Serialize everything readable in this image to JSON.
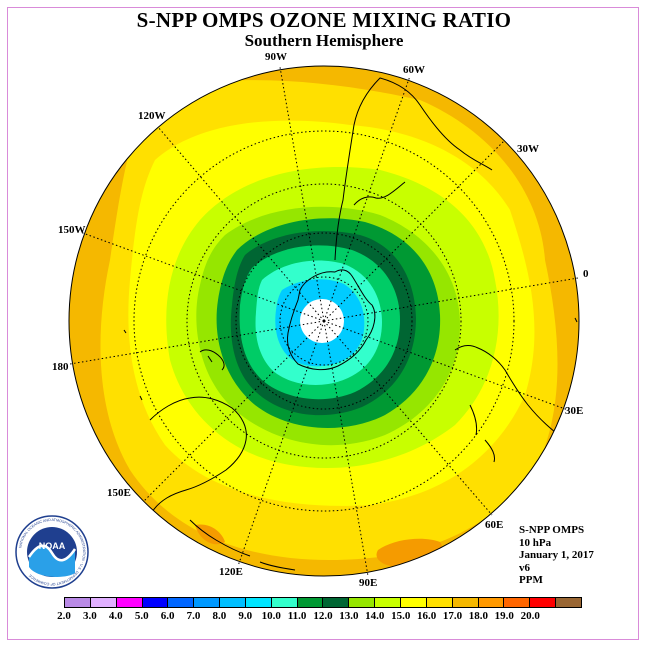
{
  "header": {
    "title": "S-NPP OMPS OZONE MIXING RATIO",
    "subtitle": "Southern Hemisphere"
  },
  "map": {
    "projection": "polar stereographic, south pole centred",
    "longitude_labels": [
      "90W",
      "60W",
      "30W",
      "0",
      "30E",
      "60E",
      "90E",
      "120E",
      "150E",
      "180",
      "150W",
      "120W"
    ],
    "contour_levels_ppm": [
      {
        "range": "> 16.0",
        "color": "#F5B800"
      },
      {
        "range": "15.0-16.0",
        "color": "#FFE000"
      },
      {
        "range": "14.0-15.0",
        "color": "#FFFF00"
      },
      {
        "range": "13.0-14.0",
        "color": "#C8FF00"
      },
      {
        "range": "12.0-13.0",
        "color": "#96E600"
      },
      {
        "range": "11.0-12.0",
        "color": "#009933"
      },
      {
        "range": "10.0-11.0",
        "color": "#006633"
      },
      {
        "range": "9.0-10.0",
        "color": "#00CC66"
      },
      {
        "range": "8.0-9.0",
        "color": "#33FFCC"
      },
      {
        "range": "7.0-8.0",
        "color": "#00CCFF"
      },
      {
        "range": "< 7.0",
        "color": "#FFFFFF"
      }
    ]
  },
  "info": {
    "instrument": "S-NPP OMPS",
    "pressure_level": "10 hPa",
    "date": "January 1, 2017",
    "version": "v6",
    "units": "PPM"
  },
  "colorbar": {
    "ticks": [
      "2.0",
      "3.0",
      "4.0",
      "5.0",
      "6.0",
      "7.0",
      "8.0",
      "9.0",
      "10.0",
      "11.0",
      "12.0",
      "13.0",
      "14.0",
      "15.0",
      "16.0",
      "17.0",
      "18.0",
      "19.0",
      "20.0"
    ],
    "colors": [
      "#B98AE6",
      "#E0B0FF",
      "#FF00FF",
      "#0000FF",
      "#0066FF",
      "#0099FF",
      "#00BFFF",
      "#00E5FF",
      "#33FFCC",
      "#009933",
      "#006633",
      "#96E600",
      "#C8FF00",
      "#FFFF00",
      "#FFE000",
      "#F5B800",
      "#FF9900",
      "#FF6600",
      "#FF0000",
      "#996633"
    ]
  },
  "logo": {
    "text": "NOAA",
    "ring_text": "NATIONAL OCEANIC AND ATMOSPHERIC ADMINISTRATION · U.S. DEPARTMENT OF COMMERCE"
  }
}
